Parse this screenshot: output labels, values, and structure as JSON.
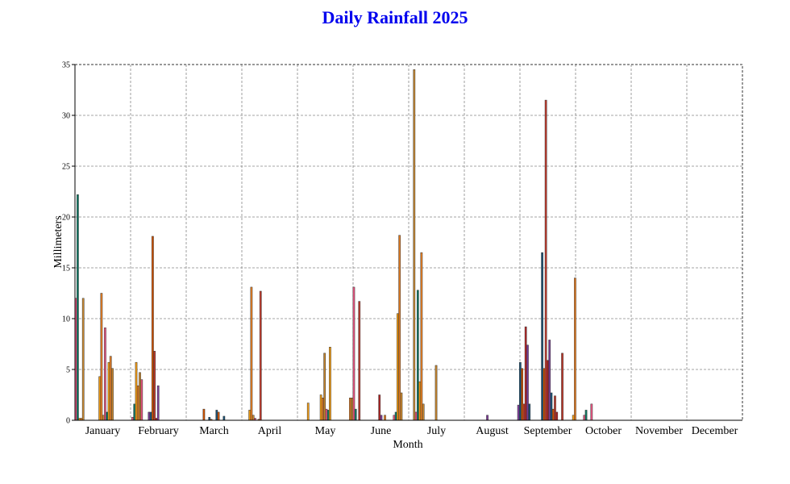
{
  "chart_data": {
    "type": "bar",
    "title": "Daily Rainfall 2025",
    "xlabel": "Month",
    "ylabel": "Millimeters",
    "ylim": [
      0,
      35
    ],
    "yticks": [
      "0",
      "5",
      "10",
      "15",
      "20",
      "25",
      "30",
      "35"
    ],
    "months": [
      "January",
      "February",
      "March",
      "April",
      "May",
      "June",
      "July",
      "August",
      "September",
      "October",
      "November",
      "December"
    ],
    "grid": true,
    "palette": [
      "#c0392b",
      "#e67e22",
      "#d35400",
      "#f39c12",
      "#1a5276",
      "#117a65",
      "#7d3c98",
      "#e75480",
      "#b22222",
      "#c8872e"
    ],
    "series": [
      {
        "name": "",
        "values": [
          [
            1,
            12.0
          ],
          [
            2,
            22.2
          ],
          [
            3,
            0.2
          ],
          [
            4,
            0.2
          ],
          [
            5,
            12.0
          ],
          [
            14,
            4.3
          ],
          [
            15,
            12.5
          ],
          [
            16,
            0.5
          ],
          [
            17,
            9.1
          ],
          [
            18,
            0.8
          ],
          [
            19,
            5.7
          ],
          [
            20,
            6.3
          ],
          [
            21,
            5.1
          ],
          [
            32,
            0.3
          ],
          [
            33,
            1.6
          ],
          [
            34,
            5.7
          ],
          [
            35,
            3.4
          ],
          [
            36,
            4.7
          ],
          [
            37,
            4.0
          ],
          [
            41,
            0.8
          ],
          [
            42,
            0.8
          ],
          [
            43,
            18.1
          ],
          [
            44,
            6.8
          ],
          [
            45,
            0.2
          ],
          [
            46,
            3.4
          ],
          [
            71,
            1.1
          ],
          [
            74,
            0.3
          ],
          [
            75,
            0.1
          ],
          [
            78,
            1.0
          ],
          [
            79,
            0.8
          ],
          [
            82,
            0.4
          ],
          [
            96,
            1.0
          ],
          [
            97,
            13.1
          ],
          [
            98,
            0.5
          ],
          [
            99,
            0.2
          ],
          [
            101,
            0.1
          ],
          [
            102,
            12.7
          ],
          [
            128,
            1.7
          ],
          [
            135,
            2.5
          ],
          [
            136,
            2.2
          ],
          [
            137,
            6.6
          ],
          [
            138,
            1.1
          ],
          [
            139,
            1.0
          ],
          [
            140,
            7.2
          ],
          [
            151,
            2.2
          ],
          [
            152,
            2.2
          ],
          [
            153,
            13.1
          ],
          [
            154,
            1.1
          ],
          [
            156,
            11.7
          ],
          [
            167,
            2.5
          ],
          [
            168,
            0.5
          ],
          [
            170,
            0.5
          ],
          [
            175,
            0.5
          ],
          [
            176,
            0.8
          ],
          [
            177,
            10.5
          ],
          [
            178,
            18.2
          ],
          [
            179,
            2.7
          ],
          [
            186,
            34.5
          ],
          [
            187,
            0.8
          ],
          [
            188,
            12.8
          ],
          [
            189,
            3.8
          ],
          [
            190,
            16.5
          ],
          [
            191,
            1.6
          ],
          [
            198,
            5.4
          ],
          [
            226,
            0.5
          ],
          [
            243,
            1.5
          ],
          [
            244,
            5.7
          ],
          [
            245,
            5.1
          ],
          [
            246,
            1.6
          ],
          [
            247,
            9.2
          ],
          [
            248,
            7.4
          ],
          [
            249,
            1.6
          ],
          [
            256,
            16.5
          ],
          [
            257,
            5.1
          ],
          [
            258,
            31.5
          ],
          [
            259,
            5.9
          ],
          [
            260,
            7.9
          ],
          [
            261,
            2.7
          ],
          [
            262,
            1.1
          ],
          [
            263,
            2.4
          ],
          [
            264,
            0.8
          ],
          [
            267,
            6.6
          ],
          [
            273,
            0.5
          ],
          [
            274,
            14.0
          ],
          [
            279,
            0.5
          ],
          [
            280,
            1.0
          ],
          [
            283,
            1.6
          ]
        ]
      }
    ]
  }
}
